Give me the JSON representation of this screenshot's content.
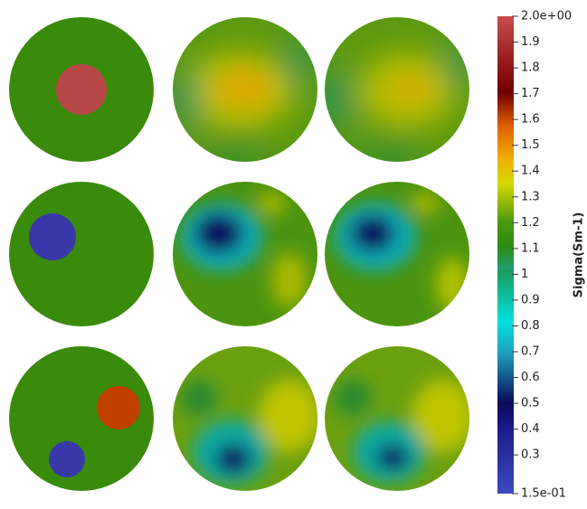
{
  "chart_data": {
    "type": "colorbar-figure",
    "colorbar": {
      "label": "Sigma(Sm-1)",
      "lim": [
        0.15,
        2.0
      ],
      "ticks": [
        {
          "value": 2.0,
          "label": "2.0e+00"
        },
        1.9,
        1.8,
        1.7,
        1.6,
        1.5,
        1.4,
        1.3,
        1.2,
        1.1,
        1,
        0.9,
        0.8,
        0.7,
        0.6,
        0.5,
        0.4,
        0.3,
        {
          "value": 0.15,
          "label": "1.5e-01"
        }
      ]
    }
  }
}
